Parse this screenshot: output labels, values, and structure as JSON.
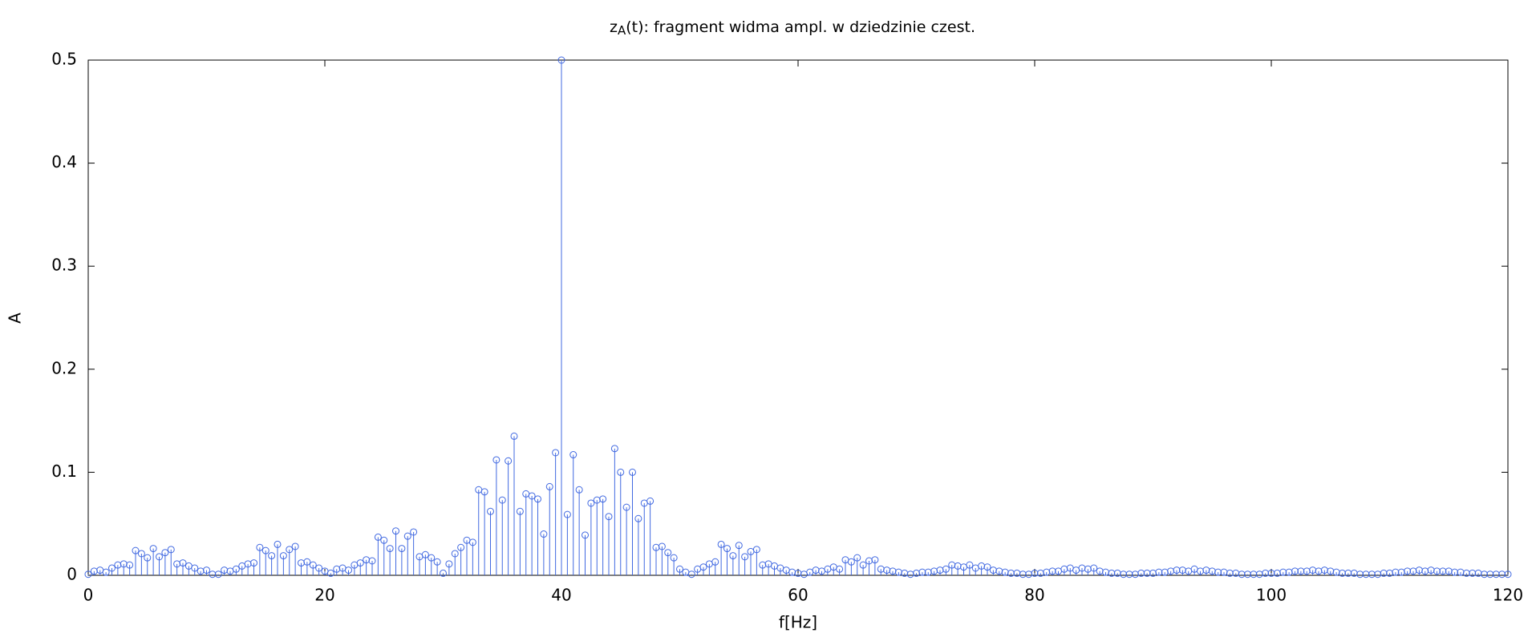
{
  "chart_data": {
    "type": "stem",
    "title": [
      "z",
      "A",
      "(t): fragment widma ampl. w dziedzinie czest."
    ],
    "xlabel": "f[Hz]",
    "ylabel": "A",
    "color": "#4169e1",
    "xlim": [
      0,
      120
    ],
    "ylim": [
      0,
      0.5
    ],
    "xticks": [
      0,
      20,
      40,
      60,
      80,
      100,
      120
    ],
    "yticks": [
      0,
      0.1,
      0.2,
      0.3,
      0.4,
      0.5
    ],
    "x": [
      0,
      0.5,
      1,
      1.5,
      2,
      2.5,
      3,
      3.5,
      4,
      4.5,
      5,
      5.5,
      6,
      6.5,
      7,
      7.5,
      8,
      8.5,
      9,
      9.5,
      10,
      10.5,
      11,
      11.5,
      12,
      12.5,
      13,
      13.5,
      14,
      14.5,
      15,
      15.5,
      16,
      16.5,
      17,
      17.5,
      18,
      18.5,
      19,
      19.5,
      20,
      20.5,
      21,
      21.5,
      22,
      22.5,
      23,
      23.5,
      24,
      24.5,
      25,
      25.5,
      26,
      26.5,
      27,
      27.5,
      28,
      28.5,
      29,
      29.5,
      30,
      30.5,
      31,
      31.5,
      32,
      32.5,
      33,
      33.5,
      34,
      34.5,
      35,
      35.5,
      36,
      36.5,
      37,
      37.5,
      38,
      38.5,
      39,
      39.5,
      40,
      40.5,
      41,
      41.5,
      42,
      42.5,
      43,
      43.5,
      44,
      44.5,
      45,
      45.5,
      46,
      46.5,
      47,
      47.5,
      48,
      48.5,
      49,
      49.5,
      50,
      50.5,
      51,
      51.5,
      52,
      52.5,
      53,
      53.5,
      54,
      54.5,
      55,
      55.5,
      56,
      56.5,
      57,
      57.5,
      58,
      58.5,
      59,
      59.5,
      60,
      60.5,
      61,
      61.5,
      62,
      62.5,
      63,
      63.5,
      64,
      64.5,
      65,
      65.5,
      66,
      66.5,
      67,
      67.5,
      68,
      68.5,
      69,
      69.5,
      70,
      70.5,
      71,
      71.5,
      72,
      72.5,
      73,
      73.5,
      74,
      74.5,
      75,
      75.5,
      76,
      76.5,
      77,
      77.5,
      78,
      78.5,
      79,
      79.5,
      80,
      80.5,
      81,
      81.5,
      82,
      82.5,
      83,
      83.5,
      84,
      84.5,
      85,
      85.5,
      86,
      86.5,
      87,
      87.5,
      88,
      88.5,
      89,
      89.5,
      90,
      90.5,
      91,
      91.5,
      92,
      92.5,
      93,
      93.5,
      94,
      94.5,
      95,
      95.5,
      96,
      96.5,
      97,
      97.5,
      98,
      98.5,
      99,
      99.5,
      100,
      100.5,
      101,
      101.5,
      102,
      102.5,
      103,
      103.5,
      104,
      104.5,
      105,
      105.5,
      106,
      106.5,
      107,
      107.5,
      108,
      108.5,
      109,
      109.5,
      110,
      110.5,
      111,
      111.5,
      112,
      112.5,
      113,
      113.5,
      114,
      114.5,
      115,
      115.5,
      116,
      116.5,
      117,
      117.5,
      118,
      118.5,
      119,
      119.5,
      120
    ],
    "values": [
      0.001,
      0.004,
      0.005,
      0.003,
      0.007,
      0.01,
      0.011,
      0.01,
      0.024,
      0.021,
      0.017,
      0.026,
      0.018,
      0.022,
      0.025,
      0.011,
      0.012,
      0.009,
      0.007,
      0.004,
      0.005,
      0.001,
      0.001,
      0.005,
      0.004,
      0.006,
      0.009,
      0.011,
      0.012,
      0.027,
      0.024,
      0.019,
      0.03,
      0.019,
      0.025,
      0.028,
      0.012,
      0.013,
      0.01,
      0.007,
      0.004,
      0.002,
      0.006,
      0.007,
      0.005,
      0.01,
      0.012,
      0.015,
      0.014,
      0.037,
      0.034,
      0.026,
      0.043,
      0.026,
      0.038,
      0.042,
      0.018,
      0.02,
      0.017,
      0.013,
      0.002,
      0.011,
      0.021,
      0.027,
      0.034,
      0.032,
      0.083,
      0.081,
      0.062,
      0.112,
      0.073,
      0.111,
      0.135,
      0.062,
      0.079,
      0.077,
      0.074,
      0.04,
      0.086,
      0.119,
      0.5,
      0.059,
      0.117,
      0.083,
      0.039,
      0.07,
      0.073,
      0.074,
      0.057,
      0.123,
      0.1,
      0.066,
      0.1,
      0.055,
      0.07,
      0.072,
      0.027,
      0.028,
      0.022,
      0.017,
      0.006,
      0.003,
      0.001,
      0.006,
      0.008,
      0.011,
      0.013,
      0.03,
      0.026,
      0.019,
      0.029,
      0.018,
      0.023,
      0.025,
      0.01,
      0.011,
      0.009,
      0.007,
      0.005,
      0.003,
      0.002,
      0.001,
      0.003,
      0.005,
      0.004,
      0.006,
      0.008,
      0.006,
      0.015,
      0.013,
      0.017,
      0.01,
      0.014,
      0.015,
      0.006,
      0.005,
      0.004,
      0.003,
      0.002,
      0.001,
      0.002,
      0.003,
      0.003,
      0.004,
      0.005,
      0.006,
      0.01,
      0.009,
      0.008,
      0.01,
      0.007,
      0.009,
      0.008,
      0.005,
      0.004,
      0.003,
      0.002,
      0.002,
      0.001,
      0.001,
      0.002,
      0.002,
      0.003,
      0.004,
      0.004,
      0.006,
      0.007,
      0.005,
      0.007,
      0.006,
      0.007,
      0.004,
      0.003,
      0.002,
      0.002,
      0.001,
      0.001,
      0.001,
      0.002,
      0.002,
      0.002,
      0.003,
      0.003,
      0.004,
      0.005,
      0.005,
      0.004,
      0.006,
      0.004,
      0.005,
      0.004,
      0.003,
      0.003,
      0.002,
      0.002,
      0.001,
      0.001,
      0.001,
      0.001,
      0.002,
      0.002,
      0.002,
      0.003,
      0.003,
      0.004,
      0.004,
      0.004,
      0.005,
      0.004,
      0.005,
      0.004,
      0.003,
      0.002,
      0.002,
      0.002,
      0.001,
      0.001,
      0.001,
      0.001,
      0.002,
      0.002,
      0.003,
      0.003,
      0.004,
      0.004,
      0.005,
      0.004,
      0.005,
      0.004,
      0.004,
      0.004,
      0.003,
      0.003,
      0.002,
      0.002,
      0.002,
      0.001,
      0.001,
      0.001,
      0.001,
      0.001
    ]
  }
}
